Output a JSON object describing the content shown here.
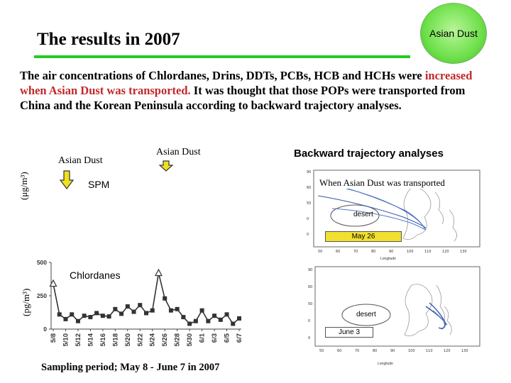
{
  "header": {
    "title": "The results in 2007",
    "badge_label": "Asian Dust"
  },
  "paragraph": {
    "before": "The air concentrations of Chlordanes, Drins, DDTs, PCBs, HCB and HCHs were ",
    "highlight": "increased when Asian Dust was transported.",
    "after": " It was thought that those POPs were transported from China and the Korean Peninsula according to backward trajectory analyses."
  },
  "colors": {
    "title_rule": "#22cc22",
    "highlight": "#c0282a",
    "badge": "#6ee04a",
    "arrow": "#f0e020"
  },
  "markers": {
    "asian_dust_left": "Asian Dust",
    "asian_dust_right": "Asian Dust"
  },
  "spm": {
    "label": "SPM",
    "unit": "(μg/m³)"
  },
  "chart_data": {
    "type": "line",
    "title": "Chlordanes",
    "ylabel": "(pg/m³)",
    "ylim": [
      0,
      500
    ],
    "yticks": [
      0,
      250,
      500
    ],
    "categories": [
      "5/8",
      "5/10",
      "5/12",
      "5/14",
      "5/16",
      "5/18",
      "5/20",
      "5/22",
      "5/24",
      "5/26",
      "5/28",
      "5/30",
      "6/1",
      "6/3",
      "6/5",
      "6/7"
    ],
    "x": [
      "5/8",
      "5/9",
      "5/10",
      "5/11",
      "5/12",
      "5/13",
      "5/14",
      "5/15",
      "5/16",
      "5/17",
      "5/18",
      "5/19",
      "5/20",
      "5/21",
      "5/22",
      "5/23",
      "5/24",
      "5/25",
      "5/26",
      "5/27",
      "5/28",
      "5/29",
      "5/30",
      "5/31",
      "6/1",
      "6/2",
      "6/3",
      "6/4",
      "6/5",
      "6/6",
      "6/7"
    ],
    "values": [
      340,
      110,
      75,
      110,
      60,
      100,
      90,
      120,
      100,
      95,
      150,
      115,
      170,
      130,
      180,
      120,
      140,
      420,
      230,
      140,
      150,
      90,
      40,
      60,
      140,
      60,
      100,
      70,
      110,
      40,
      80
    ],
    "asian_dust_points": [
      0,
      17
    ],
    "grid": false
  },
  "trajectory": {
    "title": "Backward trajectory analyses",
    "when_label": "When Asian Dust was transported",
    "map1": {
      "date": "May 26",
      "region": "desert",
      "axis": "Longitude"
    },
    "map2": {
      "date": "June 3",
      "region": "desert",
      "axis": "Longitude"
    }
  },
  "footer": {
    "sampling": "Sampling period; May 8 - June 7 in 2007"
  }
}
